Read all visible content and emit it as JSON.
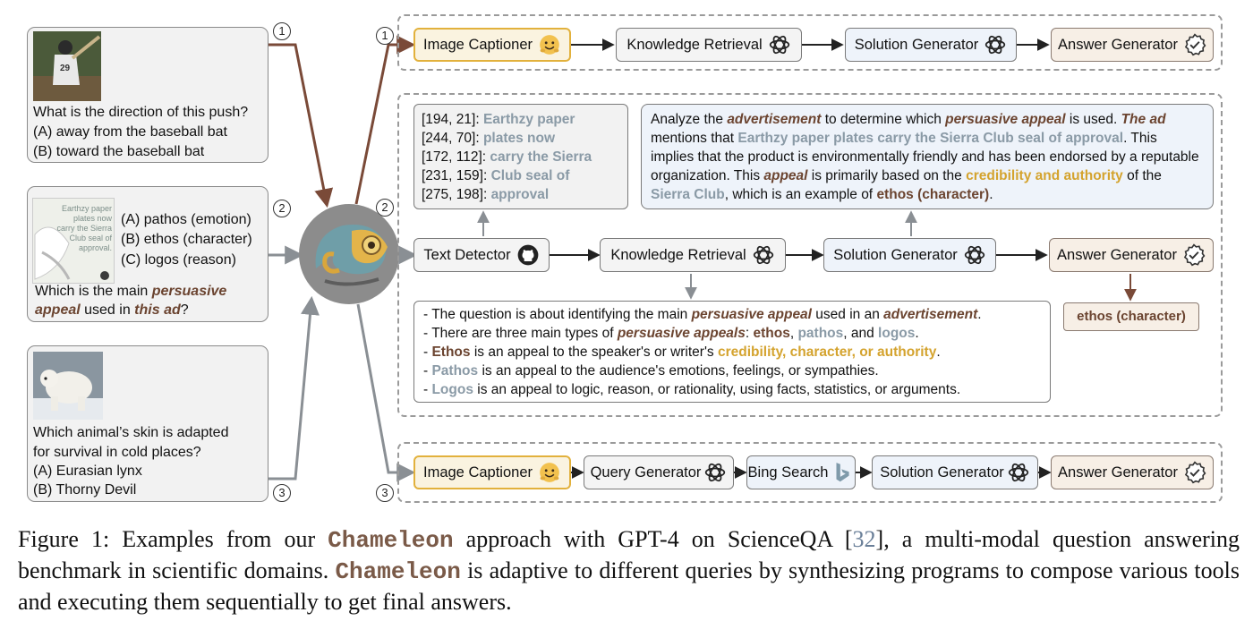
{
  "questions": {
    "q1": {
      "line1": "What is the direction of this push?",
      "line2": "(A) away from the baseball bat",
      "line3": "(B) toward the baseball bat",
      "jersey": "29"
    },
    "q2": {
      "thumb": [
        "Earthzy paper",
        "plates now",
        "carry the Sierra",
        "Club seal of",
        "approval."
      ],
      "optA": "(A) pathos (emotion)",
      "optB": "(B) ethos (character)",
      "optC": "(C) logos (reason)",
      "q_pre": "Which is the main ",
      "q_em1": "persuasive",
      "q_em2": "appeal",
      "q_mid": " used in ",
      "q_em3": "this ad",
      "q_end": "?"
    },
    "q3": {
      "line1": "Which animal’s skin is adapted",
      "line2": "for survival in cold places?",
      "line3": "(A) Eurasian lynx",
      "line4": "(B) Thorny Devil"
    }
  },
  "numbers": [
    "1",
    "2",
    "3"
  ],
  "row1": [
    "Image Captioner",
    "Knowledge Retrieval",
    "Solution Generator",
    "Answer Generator"
  ],
  "row2": [
    "Text Detector",
    "Knowledge Retrieval",
    "Solution Generator",
    "Answer Generator"
  ],
  "row3": [
    "Image Captioner",
    "Query Generator",
    "Bing Search",
    "Solution Generator",
    "Answer Generator"
  ],
  "ocr": [
    {
      "coord": "[194, 21]: ",
      "text": "Earthzy paper"
    },
    {
      "coord": "[244, 70]: ",
      "text": "plates now"
    },
    {
      "coord": "[172, 112]: ",
      "text": "carry the Sierra"
    },
    {
      "coord": "[231, 159]: ",
      "text": "Club seal of"
    },
    {
      "coord": "[275, 198]: ",
      "text": "approval"
    }
  ],
  "solution": {
    "s1": "Analyze the ",
    "s2": "advertisement",
    "s3": " to determine which ",
    "s4": "persuasive appeal",
    "s5": " is used. ",
    "s6": "The ad",
    "s7": " mentions that ",
    "s8": "Earthzy paper plates carry the Sierra Club seal of approval",
    "s9": ". This implies that the product is environmentally friendly and has been endorsed by a reputable organization. This ",
    "s10": "appeal",
    "s11": " is primarily based on the ",
    "s12": "credibility and authority",
    "s13": " of the ",
    "s14": "Sierra Club",
    "s15": ", which is an example of ",
    "s16": "ethos (character)",
    "s17": "."
  },
  "knowledge": {
    "l1a": "- The question is about identifying the main ",
    "l1b": "persuasive appeal",
    "l1c": " used in an ",
    "l1d": "advertisement",
    "l1e": ".",
    "l2a": "- There are three main types of ",
    "l2b": "persuasive appeals",
    "l2c": ": ",
    "l2d": "ethos",
    "l2e": ", ",
    "l2f": "pathos",
    "l2g": ", and ",
    "l2h": "logos",
    "l2i": ".",
    "l3a": "- ",
    "l3b": "Ethos",
    "l3c": " is an appeal to the speaker's or writer's ",
    "l3d": "credibility, character, or authority",
    "l3e": ".",
    "l4a": "- ",
    "l4b": "Pathos",
    "l4c": " is an appeal to the audience's emotions, feelings, or sympathies.",
    "l5a": "- ",
    "l5b": "Logos",
    "l5c": " is an appeal to logic, reason, or rationality, using facts, statistics, or arguments."
  },
  "answer": "ethos (character)",
  "caption": {
    "p1": "Figure 1: Examples from our ",
    "name1": "Chameleon",
    "p2": " approach with GPT-4 on ScienceQA [",
    "ref": "32",
    "p3": "], a multi-modal question answering benchmark in scientific domains. ",
    "name2": "Chameleon",
    "p4": " is adaptive to different queries by synthesizing programs to compose various tools and executing them sequentially to get final answers."
  },
  "icons": {
    "captioner": "huggingface-icon",
    "retrieval": "openai-icon",
    "detector": "github-icon",
    "search": "bing-icon",
    "answer": "check-badge-icon"
  },
  "colors": {
    "arrow_brown": "#7a4a38",
    "arrow_gray": "#8a8f94",
    "gold": "#d4a32e",
    "gray_text": "#8a9aa6",
    "brown_text": "#6b4430"
  }
}
